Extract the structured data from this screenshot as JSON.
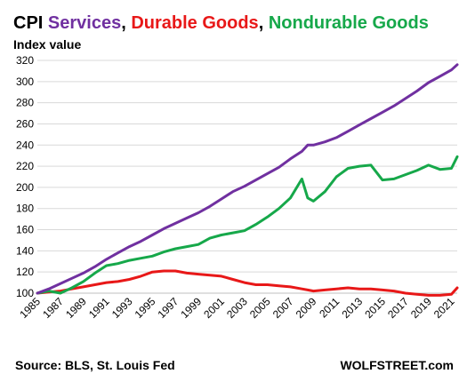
{
  "colors": {
    "CPI": "#000000",
    "Services": "#7030a0",
    "Durable Goods": "#e81818",
    "Nondurable Goods": "#16a84a",
    "grid": "#d9d9d9"
  },
  "title_parts": [
    {
      "text": "CPI ",
      "color": "#000000"
    },
    {
      "text": "Services",
      "color": "#7030a0"
    },
    {
      "text": ", ",
      "color": "#000000"
    },
    {
      "text": "Durable Goods",
      "color": "#e81818"
    },
    {
      "text": ", ",
      "color": "#000000"
    },
    {
      "text": "Nondurable Goods",
      "color": "#16a84a"
    }
  ],
  "ylabel": "Index value",
  "source": "Source: BLS, St. Louis Fed",
  "brand": "WOLFSTREET.com",
  "chart_data": {
    "type": "line",
    "title": "CPI Services, Durable Goods, Nondurable Goods",
    "xlabel": "",
    "ylabel": "Index value",
    "xlim": [
      1985,
      2021.5
    ],
    "ylim": [
      100,
      320
    ],
    "yticks": [
      100,
      120,
      140,
      160,
      180,
      200,
      220,
      240,
      260,
      280,
      300,
      320
    ],
    "xticks": [
      "1985",
      "1987",
      "1989",
      "1991",
      "1993",
      "1995",
      "1997",
      "1999",
      "2001",
      "2003",
      "2005",
      "2007",
      "2009",
      "2011",
      "2013",
      "2015",
      "2017",
      "2019",
      "2021"
    ],
    "grid": "horizontal",
    "legend": "in title",
    "x": [
      1985,
      1986,
      1987,
      1988,
      1989,
      1990,
      1991,
      1992,
      1993,
      1994,
      1995,
      1996,
      1997,
      1998,
      1999,
      2000,
      2001,
      2002,
      2003,
      2004,
      2005,
      2006,
      2007,
      2008,
      2008.5,
      2009,
      2010,
      2011,
      2012,
      2013,
      2014,
      2015,
      2016,
      2017,
      2018,
      2019,
      2020,
      2021,
      2021.5
    ],
    "series": [
      {
        "name": "Services",
        "color": "#7030a0",
        "values": [
          100,
          104,
          109,
          114,
          119,
          125,
          132,
          138,
          144,
          149,
          155,
          161,
          166,
          171,
          176,
          182,
          189,
          196,
          201,
          207,
          213,
          219,
          227,
          234,
          240,
          240,
          243,
          247,
          253,
          259,
          265,
          271,
          277,
          284,
          291,
          299,
          305,
          311,
          316
        ]
      },
      {
        "name": "Durable Goods",
        "color": "#e81818",
        "values": [
          100,
          101,
          102,
          104,
          106,
          108,
          110,
          111,
          113,
          116,
          120,
          121,
          121,
          119,
          118,
          117,
          116,
          113,
          110,
          108,
          108,
          107,
          106,
          104,
          103,
          102,
          103,
          104,
          105,
          104,
          104,
          103,
          102,
          100,
          99,
          98,
          98,
          99,
          105
        ]
      },
      {
        "name": "Nondurable Goods",
        "color": "#16a84a",
        "values": [
          100,
          102,
          100,
          105,
          111,
          119,
          126,
          128,
          131,
          133,
          135,
          139,
          142,
          144,
          146,
          152,
          155,
          157,
          159,
          165,
          172,
          180,
          190,
          208,
          190,
          187,
          196,
          210,
          218,
          220,
          221,
          207,
          208,
          212,
          216,
          221,
          217,
          218,
          229
        ]
      }
    ]
  }
}
